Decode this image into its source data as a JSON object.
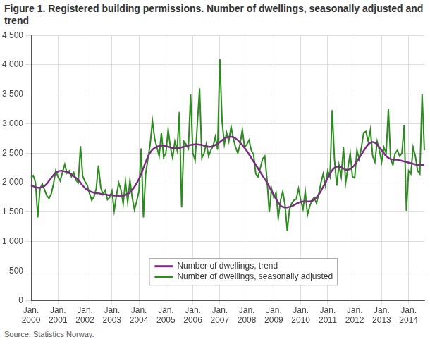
{
  "chart_data": {
    "type": "line",
    "title": "Figure 1. Registered building permissions. Number of dwellings, seasonally adjusted and trend",
    "source": "Source: Statistics Norway.",
    "categories": [
      "Jan. 2000",
      null,
      null,
      null,
      null,
      null,
      null,
      null,
      null,
      null,
      null,
      null,
      "Jan. 2001",
      null,
      null,
      null,
      null,
      null,
      null,
      null,
      null,
      null,
      null,
      null,
      "Jan. 2002",
      null,
      null,
      null,
      null,
      null,
      null,
      null,
      null,
      null,
      null,
      null,
      "Jan. 2003",
      null,
      null,
      null,
      null,
      null,
      null,
      null,
      null,
      null,
      null,
      null,
      "Jan. 2004",
      null,
      null,
      null,
      null,
      null,
      null,
      null,
      null,
      null,
      null,
      null,
      "Jan. 2005",
      null,
      null,
      null,
      null,
      null,
      null,
      null,
      null,
      null,
      null,
      null,
      "Jan. 2006",
      null,
      null,
      null,
      null,
      null,
      null,
      null,
      null,
      null,
      null,
      null,
      "Jan. 2007",
      null,
      null,
      null,
      null,
      null,
      null,
      null,
      null,
      null,
      null,
      null,
      "Jan. 2008",
      null,
      null,
      null,
      null,
      null,
      null,
      null,
      null,
      null,
      null,
      null,
      "Jan. 2009",
      null,
      null,
      null,
      null,
      null,
      null,
      null,
      null,
      null,
      null,
      null,
      "Jan. 2010",
      null,
      null,
      null,
      null,
      null,
      null,
      null,
      null,
      null,
      null,
      null,
      "Jan. 2011",
      null,
      null,
      null,
      null,
      null,
      null,
      null,
      null,
      null,
      null,
      null,
      "Jan. 2012",
      null,
      null,
      null,
      null,
      null,
      null,
      null,
      null,
      null,
      null,
      null,
      "Jan. 2013",
      null,
      null,
      null,
      null,
      null,
      null,
      null,
      null,
      null,
      null,
      null,
      "Jan. 2014",
      null,
      null,
      null,
      null,
      null,
      null,
      null
    ],
    "series": [
      {
        "name": "Number of dwellings, trend",
        "color": "#7b2c83",
        "values": [
          1960,
          1940,
          1925,
          1915,
          1915,
          1925,
          1945,
          1980,
          2030,
          2080,
          2130,
          2170,
          2190,
          2200,
          2200,
          2190,
          2180,
          2160,
          2140,
          2110,
          2080,
          2050,
          2000,
          1950,
          1910,
          1880,
          1860,
          1840,
          1830,
          1820,
          1820,
          1810,
          1800,
          1800,
          1790,
          1790,
          1790,
          1780,
          1780,
          1770,
          1770,
          1780,
          1790,
          1810,
          1840,
          1880,
          1930,
          1990,
          2060,
          2150,
          2250,
          2350,
          2440,
          2510,
          2560,
          2590,
          2610,
          2620,
          2630,
          2630,
          2620,
          2610,
          2600,
          2590,
          2590,
          2590,
          2590,
          2600,
          2610,
          2620,
          2630,
          2640,
          2645,
          2650,
          2650,
          2645,
          2640,
          2630,
          2620,
          2610,
          2610,
          2620,
          2640,
          2660,
          2690,
          2720,
          2750,
          2770,
          2780,
          2780,
          2770,
          2750,
          2720,
          2680,
          2640,
          2590,
          2540,
          2480,
          2420,
          2360,
          2300,
          2240,
          2180,
          2120,
          2060,
          2000,
          1930,
          1860,
          1790,
          1720,
          1660,
          1610,
          1590,
          1580,
          1580,
          1590,
          1600,
          1620,
          1640,
          1660,
          1670,
          1680,
          1680,
          1680,
          1680,
          1690,
          1710,
          1750,
          1800,
          1860,
          1930,
          2000,
          2080,
          2150,
          2210,
          2250,
          2270,
          2270,
          2260,
          2240,
          2220,
          2220,
          2230,
          2260,
          2300,
          2360,
          2420,
          2480,
          2540,
          2600,
          2650,
          2680,
          2690,
          2680,
          2650,
          2600,
          2550,
          2500,
          2450,
          2420,
          2400,
          2390,
          2390,
          2390,
          2380,
          2370,
          2360,
          2350,
          2340,
          2330,
          2320,
          2310,
          2300,
          2300,
          2300,
          2300
        ]
      },
      {
        "name": "Number of dwellings, seasonally adjusted",
        "color": "#2e8b21",
        "values": [
          2080,
          2120,
          2000,
          1410,
          1900,
          1980,
          1880,
          1780,
          1730,
          1810,
          1980,
          2200,
          2100,
          2030,
          2180,
          2310,
          2160,
          2200,
          2100,
          2170,
          2040,
          2000,
          2620,
          2110,
          2020,
          1960,
          1820,
          1700,
          1760,
          1900,
          2290,
          1920,
          1800,
          1870,
          1710,
          1750,
          1860,
          1520,
          1780,
          2000,
          1880,
          1640,
          2020,
          1670,
          2040,
          1750,
          1540,
          1680,
          1850,
          2580,
          1410,
          2150,
          2400,
          2650,
          3050,
          2750,
          2600,
          2450,
          2850,
          2430,
          2500,
          2900,
          2600,
          2420,
          2700,
          2550,
          3200,
          1580,
          2700,
          2650,
          2580,
          3500,
          2500,
          2380,
          3000,
          3600,
          2420,
          2500,
          2660,
          2450,
          2550,
          2620,
          2780,
          2560,
          4100,
          3050,
          2650,
          2850,
          2700,
          2950,
          2750,
          2600,
          2500,
          2650,
          2900,
          2600,
          2650,
          2720,
          2550,
          2480,
          2150,
          2100,
          2250,
          2400,
          2450,
          2050,
          1500,
          1900,
          1750,
          1830,
          1400,
          1700,
          1850,
          1620,
          1180,
          1550,
          1650,
          1700,
          1720,
          1900,
          1700,
          1550,
          1850,
          1450,
          1600,
          1700,
          1750,
          1650,
          1800,
          2000,
          2150,
          1950,
          2200,
          2100,
          3230,
          2400,
          1950,
          2300,
          2100,
          2600,
          2000,
          2250,
          2500,
          2100,
          2080,
          2550,
          2400,
          2600,
          2850,
          2870,
          2700,
          2900,
          2450,
          2350,
          2700,
          2550,
          2350,
          2600,
          2500,
          3250,
          2400,
          2300,
          2500,
          2550,
          2450,
          2500,
          2980,
          1520,
          2200,
          2150,
          2600,
          2450,
          2200,
          2150,
          3500,
          2550
        ]
      }
    ],
    "ylim": [
      0,
      4500
    ],
    "yticks": [
      0,
      500,
      {
        "value": 1000,
        "label": "1 000"
      },
      {
        "value": 1500,
        "label": "1 500"
      },
      {
        "value": 2000,
        "label": "2 000"
      },
      {
        "value": 2500,
        "label": "2 500"
      },
      {
        "value": 3000,
        "label": "3 000"
      },
      {
        "value": 3500,
        "label": "3 500"
      },
      {
        "value": 4000,
        "label": "4 000"
      },
      {
        "value": 4500,
        "label": "4 500"
      }
    ],
    "grid": true,
    "legend": "bottom"
  }
}
